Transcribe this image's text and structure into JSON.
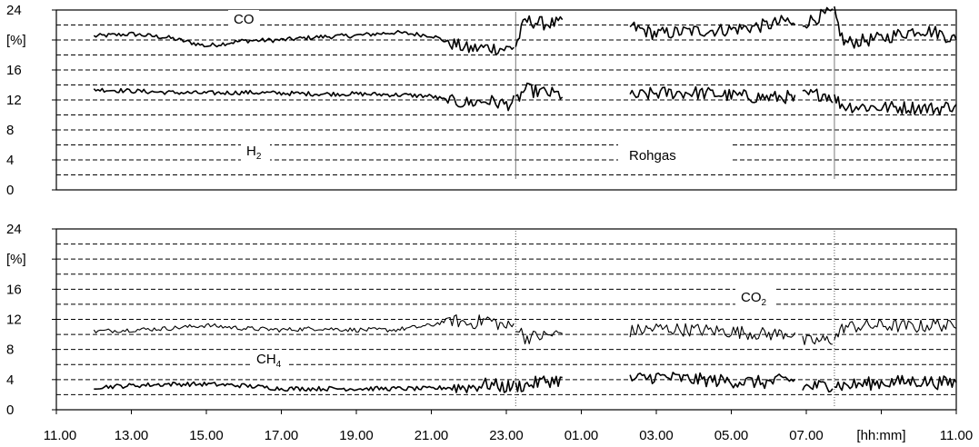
{
  "chart_data": [
    {
      "type": "line",
      "panel": "top",
      "ylabel": "[%]",
      "ylim": [
        0,
        24
      ],
      "yticks": [
        0,
        4,
        8,
        12,
        16,
        20,
        24
      ],
      "ytick_labels": [
        "0",
        "4",
        "8",
        "12",
        "16",
        "[%]",
        "24"
      ],
      "grid": true,
      "xlim_hours": [
        11,
        35
      ],
      "annotations": [
        "CO",
        "H",
        "Rohgas"
      ],
      "separators_hours": [
        23.25,
        31.75
      ],
      "gaps_hours": [
        [
          24.55,
          26.3
        ],
        [
          30.75,
          30.9
        ]
      ],
      "series": [
        {
          "name": "CO",
          "label_text": "CO",
          "style": "thick",
          "points": [
            [
              12.0,
              20.5
            ],
            [
              13.0,
              20.8
            ],
            [
              14.0,
              20.3
            ],
            [
              15.0,
              19.2
            ],
            [
              16.0,
              19.9
            ],
            [
              17.0,
              20.0
            ],
            [
              18.0,
              20.4
            ],
            [
              19.0,
              20.6
            ],
            [
              20.0,
              21.0
            ],
            [
              21.0,
              20.6
            ],
            [
              21.5,
              19.6
            ],
            [
              22.0,
              18.8
            ],
            [
              22.5,
              19.0
            ],
            [
              23.0,
              18.8
            ],
            [
              23.25,
              19.2
            ],
            [
              23.5,
              22.6
            ],
            [
              24.0,
              22.2
            ],
            [
              24.55,
              22.2
            ],
            [
              26.3,
              21.8
            ],
            [
              27.0,
              20.8
            ],
            [
              28.0,
              21.2
            ],
            [
              29.0,
              21.4
            ],
            [
              30.0,
              22.0
            ],
            [
              30.5,
              22.6
            ],
            [
              30.75,
              21.4
            ],
            [
              30.9,
              22.2
            ],
            [
              31.5,
              23.4
            ],
            [
              31.75,
              23.6
            ],
            [
              32.0,
              19.6
            ],
            [
              33.0,
              20.2
            ],
            [
              34.0,
              21.4
            ],
            [
              34.5,
              21.0
            ],
            [
              35.0,
              20.0
            ]
          ]
        },
        {
          "name": "H2",
          "label_text": "H",
          "label_subscript": "2",
          "style": "thick",
          "points": [
            [
              12.0,
              13.4
            ],
            [
              13.0,
              13.2
            ],
            [
              14.0,
              13.0
            ],
            [
              15.0,
              12.9
            ],
            [
              16.0,
              13.0
            ],
            [
              17.0,
              12.9
            ],
            [
              18.0,
              12.8
            ],
            [
              19.0,
              12.8
            ],
            [
              20.0,
              12.7
            ],
            [
              21.0,
              12.5
            ],
            [
              21.5,
              11.8
            ],
            [
              22.0,
              11.6
            ],
            [
              22.5,
              11.9
            ],
            [
              23.0,
              11.4
            ],
            [
              23.25,
              11.8
            ],
            [
              23.5,
              13.4
            ],
            [
              24.0,
              13.0
            ],
            [
              24.55,
              12.6
            ],
            [
              26.3,
              12.4
            ],
            [
              27.0,
              12.9
            ],
            [
              28.0,
              13.0
            ],
            [
              29.0,
              12.6
            ],
            [
              30.0,
              12.3
            ],
            [
              30.5,
              12.4
            ],
            [
              30.75,
              11.8
            ],
            [
              30.9,
              12.6
            ],
            [
              31.5,
              12.8
            ],
            [
              31.75,
              12.2
            ],
            [
              32.0,
              11.2
            ],
            [
              33.0,
              11.0
            ],
            [
              34.0,
              11.0
            ],
            [
              34.5,
              10.8
            ],
            [
              35.0,
              11.4
            ]
          ]
        }
      ]
    },
    {
      "type": "line",
      "panel": "bottom",
      "ylabel": "[%]",
      "ylim": [
        0,
        24
      ],
      "yticks": [
        0,
        4,
        8,
        12,
        16,
        20,
        24
      ],
      "ytick_labels": [
        "0",
        "4",
        "8",
        "12",
        "16",
        "[%]",
        "24"
      ],
      "grid": true,
      "xlim_hours": [
        11,
        35
      ],
      "xtick_labels": [
        "11.00",
        "13.00",
        "15.00",
        "17.00",
        "19.00",
        "21.00",
        "23.00",
        "01.00",
        "03.00",
        "05.00",
        "07.00",
        "[hh:mm]",
        "11.00"
      ],
      "annotations": [
        "CO",
        "CH"
      ],
      "separators_hours": [
        23.25,
        31.75
      ],
      "gaps_hours": [
        [
          24.55,
          26.3
        ],
        [
          30.75,
          30.9
        ]
      ],
      "series": [
        {
          "name": "CO2",
          "label_text": "CO",
          "label_subscript": "2",
          "style": "thin",
          "points": [
            [
              12.0,
              10.4
            ],
            [
              13.0,
              10.6
            ],
            [
              14.0,
              10.8
            ],
            [
              15.0,
              11.2
            ],
            [
              16.0,
              10.8
            ],
            [
              17.0,
              10.6
            ],
            [
              18.0,
              10.8
            ],
            [
              19.0,
              10.6
            ],
            [
              20.0,
              10.6
            ],
            [
              21.0,
              11.2
            ],
            [
              21.5,
              12.0
            ],
            [
              22.0,
              11.4
            ],
            [
              22.5,
              12.0
            ],
            [
              23.0,
              11.0
            ],
            [
              23.25,
              11.2
            ],
            [
              23.5,
              9.6
            ],
            [
              24.0,
              9.8
            ],
            [
              24.55,
              10.2
            ],
            [
              26.3,
              10.4
            ],
            [
              27.0,
              10.8
            ],
            [
              28.0,
              10.6
            ],
            [
              29.0,
              10.4
            ],
            [
              30.0,
              10.0
            ],
            [
              30.5,
              10.2
            ],
            [
              30.75,
              10.0
            ],
            [
              30.9,
              9.0
            ],
            [
              31.5,
              9.2
            ],
            [
              31.75,
              9.4
            ],
            [
              32.0,
              11.0
            ],
            [
              33.0,
              11.2
            ],
            [
              34.0,
              11.0
            ],
            [
              34.5,
              11.4
            ],
            [
              35.0,
              10.8
            ]
          ]
        },
        {
          "name": "CH4",
          "label_text": "CH",
          "label_subscript": "4",
          "style": "thick",
          "points": [
            [
              12.0,
              3.0
            ],
            [
              13.0,
              3.2
            ],
            [
              14.0,
              3.4
            ],
            [
              15.0,
              3.4
            ],
            [
              16.0,
              3.2
            ],
            [
              17.0,
              2.8
            ],
            [
              18.0,
              2.8
            ],
            [
              19.0,
              2.8
            ],
            [
              20.0,
              2.8
            ],
            [
              21.0,
              2.8
            ],
            [
              21.5,
              3.0
            ],
            [
              22.0,
              3.0
            ],
            [
              22.5,
              3.4
            ],
            [
              23.0,
              3.0
            ],
            [
              23.25,
              3.2
            ],
            [
              23.5,
              3.2
            ],
            [
              24.0,
              3.8
            ],
            [
              24.55,
              4.0
            ],
            [
              26.3,
              4.0
            ],
            [
              27.0,
              4.4
            ],
            [
              28.0,
              4.0
            ],
            [
              29.0,
              3.8
            ],
            [
              30.0,
              3.6
            ],
            [
              30.5,
              4.0
            ],
            [
              30.75,
              3.8
            ],
            [
              30.9,
              3.0
            ],
            [
              31.5,
              3.2
            ],
            [
              31.75,
              3.4
            ],
            [
              32.0,
              3.2
            ],
            [
              33.0,
              3.6
            ],
            [
              34.0,
              3.8
            ],
            [
              34.5,
              3.6
            ],
            [
              35.0,
              3.6
            ]
          ]
        }
      ]
    }
  ]
}
